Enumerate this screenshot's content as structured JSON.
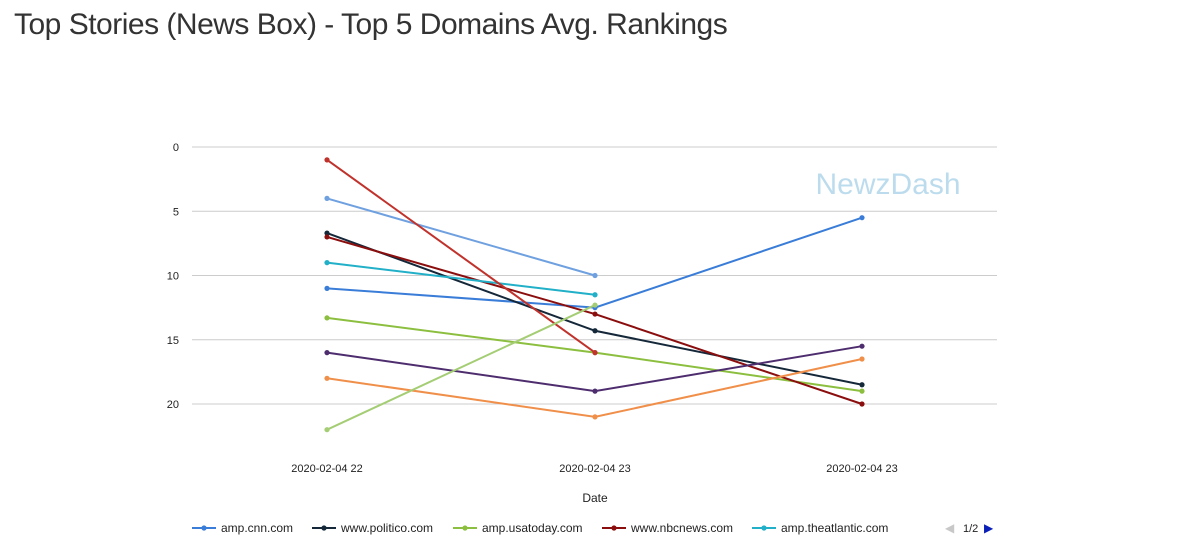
{
  "title": "Top Stories (News Box) - Top 5 Domains Avg. Rankings",
  "watermark": "NewzDash",
  "pager": {
    "label": "1/2",
    "prev": "◀",
    "next": "▶"
  },
  "chart_data": {
    "type": "line",
    "xlabel": "Date",
    "ylabel": "",
    "categories": [
      "2020-02-04 22",
      "2020-02-04 23",
      "2020-02-04 23"
    ],
    "y_reversed": true,
    "ylim": [
      0,
      22
    ],
    "yticks": [
      0,
      5,
      10,
      15,
      20
    ],
    "grid": true,
    "legend_position": "bottom",
    "series": [
      {
        "name": "amp.cnn.com",
        "color": "#3a7dd8",
        "values": [
          11,
          12.5,
          5.5
        ]
      },
      {
        "name": "www.politico.com",
        "color": "#15283a",
        "values": [
          6.7,
          14.3,
          18.5
        ]
      },
      {
        "name": "amp.usatoday.com",
        "color": "#8cbf3f",
        "values": [
          13.3,
          16,
          19
        ]
      },
      {
        "name": "www.nbcnews.com",
        "color": "#8b0e0e",
        "values": [
          7,
          13,
          20
        ]
      },
      {
        "name": "amp.theatlantic.com",
        "color": "#21b0c8",
        "values": [
          9,
          11.5,
          null
        ]
      },
      {
        "name": "",
        "color": "#6fa0e0",
        "values": [
          4,
          10,
          null
        ]
      },
      {
        "name": "",
        "color": "#c0322b",
        "values": [
          1,
          16,
          null
        ]
      },
      {
        "name": "",
        "color": "#4e2d6e",
        "values": [
          16,
          19,
          15.5
        ]
      },
      {
        "name": "",
        "color": "#f08f4a",
        "values": [
          18,
          21,
          16.5
        ]
      },
      {
        "name": "",
        "color": "#a4cd74",
        "values": [
          22,
          12.3,
          null
        ]
      }
    ]
  }
}
